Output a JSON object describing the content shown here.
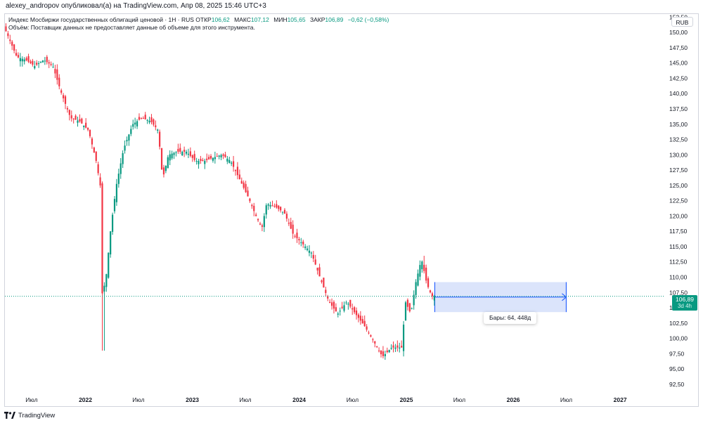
{
  "header": {
    "caption": "alexey_andropov опубликовал(а) на TradingView.com, Апр 08, 2025 15:46 UTC+3"
  },
  "legend": {
    "title": "Индекс Мосбиржи государственных облигаций ценовой · 1Н · RUS",
    "open_label": "ОТКР",
    "open_value": "106,62",
    "high_label": "МАКС",
    "high_value": "107,12",
    "low_label": "МИН",
    "low_value": "105,65",
    "close_label": "ЗАКР",
    "close_value": "106,89",
    "change": "−0,62 (−0,58%)",
    "volume_note": "Объём: Поставщик данных не предоставляет данные об объеме для этого инструмента."
  },
  "currency_badge": "RUB",
  "price_tag": {
    "price": "106,89",
    "countdown": "3d 4h"
  },
  "measure_label": "Бары: 64, 448д",
  "footer": {
    "brand": "TradingView"
  },
  "colors": {
    "up": "#089981",
    "down": "#f23645",
    "last_price_line": "#089981",
    "measure_fill": "#dbe4fb",
    "measure_stroke": "#2962ff"
  },
  "chart_data": {
    "type": "candlestick",
    "title": "Индекс Мосбиржи государственных облигаций ценовой · 1Н · RUS",
    "currency": "RUB",
    "last_close": 106.89,
    "ylim": [
      91,
      153
    ],
    "y_ticks": [
      "92,50",
      "95,00",
      "97,50",
      "100,00",
      "102,50",
      "105,00",
      "107,50",
      "110,00",
      "112,50",
      "115,00",
      "117,50",
      "120,00",
      "122,50",
      "125,00",
      "127,50",
      "130,00",
      "132,50",
      "135,00",
      "137,50",
      "140,00",
      "142,50",
      "145,00",
      "147,50",
      "150,00",
      "152,50"
    ],
    "x_ticks": [
      "Июл",
      "2022",
      "Июл",
      "2023",
      "Июл",
      "2024",
      "Июл",
      "2025",
      "Июл",
      "2026",
      "Июл",
      "2027"
    ],
    "x_tick_dates": [
      "2021-07",
      "2022-01",
      "2022-07",
      "2023-01",
      "2023-07",
      "2024-01",
      "2024-07",
      "2025-01",
      "2025-07",
      "2026-01",
      "2026-07",
      "2027-01"
    ],
    "price_path": [
      [
        "2021-04-01",
        151.0
      ],
      [
        "2021-05-15",
        146.0
      ],
      [
        "2021-06-15",
        145.5
      ],
      [
        "2021-07-15",
        144.5
      ],
      [
        "2021-08-15",
        145.5
      ],
      [
        "2021-09-15",
        144.5
      ],
      [
        "2021-10-15",
        140.0
      ],
      [
        "2021-11-15",
        136.0
      ],
      [
        "2021-12-15",
        135.5
      ],
      [
        "2022-01-15",
        134.0
      ],
      [
        "2022-02-10",
        129.0
      ],
      [
        "2022-02-24",
        125.0
      ],
      [
        "2022-03-01",
        107.0
      ],
      [
        "2022-03-15",
        109.5
      ],
      [
        "2022-04-01",
        118.0
      ],
      [
        "2022-04-20",
        125.0
      ],
      [
        "2022-05-15",
        131.0
      ],
      [
        "2022-06-15",
        135.0
      ],
      [
        "2022-07-15",
        136.0
      ],
      [
        "2022-08-15",
        135.5
      ],
      [
        "2022-09-10",
        134.0
      ],
      [
        "2022-09-25",
        126.0
      ],
      [
        "2022-10-15",
        130.0
      ],
      [
        "2022-11-15",
        130.5
      ],
      [
        "2022-12-15",
        130.5
      ],
      [
        "2023-01-15",
        129.0
      ],
      [
        "2023-02-15",
        129.0
      ],
      [
        "2023-03-15",
        129.5
      ],
      [
        "2023-04-15",
        130.0
      ],
      [
        "2023-05-15",
        129.0
      ],
      [
        "2023-06-15",
        126.0
      ],
      [
        "2023-07-15",
        123.0
      ],
      [
        "2023-08-10",
        120.0
      ],
      [
        "2023-08-30",
        118.0
      ],
      [
        "2023-09-15",
        122.0
      ],
      [
        "2023-10-15",
        121.5
      ],
      [
        "2023-11-15",
        120.5
      ],
      [
        "2023-12-15",
        117.0
      ],
      [
        "2024-01-15",
        115.5
      ],
      [
        "2024-02-15",
        114.0
      ],
      [
        "2024-03-15",
        110.0
      ],
      [
        "2024-04-15",
        106.0
      ],
      [
        "2024-05-15",
        104.0
      ],
      [
        "2024-06-15",
        106.0
      ],
      [
        "2024-07-15",
        104.0
      ],
      [
        "2024-08-15",
        102.0
      ],
      [
        "2024-09-15",
        99.5
      ],
      [
        "2024-10-15",
        97.0
      ],
      [
        "2024-11-15",
        98.5
      ],
      [
        "2024-12-20",
        98.5
      ],
      [
        "2025-01-01",
        106.0
      ],
      [
        "2025-01-20",
        104.0
      ],
      [
        "2025-02-05",
        109.0
      ],
      [
        "2025-02-25",
        113.0
      ],
      [
        "2025-03-15",
        109.0
      ],
      [
        "2025-04-01",
        106.9
      ]
    ],
    "extremes": {
      "2022_low_wick": 98.0,
      "2022_pre_crash_high": 136.5,
      "2024_low": 96.5,
      "2025_high": 113.5
    },
    "measure": {
      "start": "2025-04-08",
      "end": "2026-07-01",
      "bars": 64,
      "days": 448
    }
  }
}
